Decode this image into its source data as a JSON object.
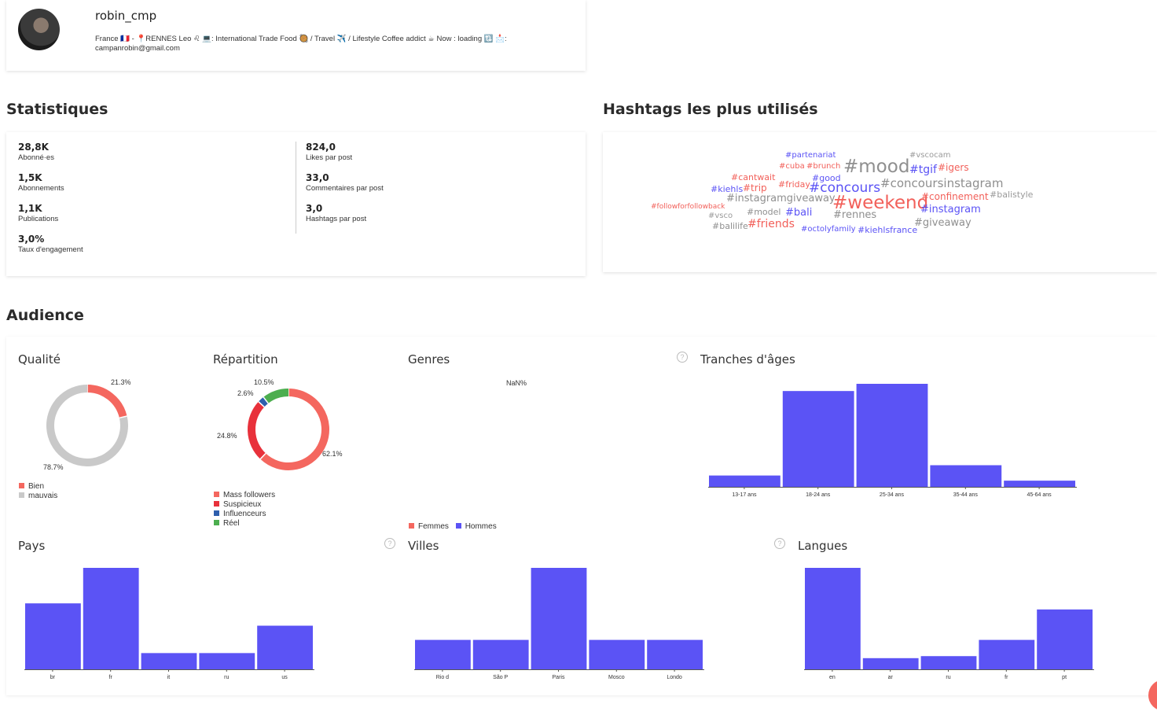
{
  "profile": {
    "username": "robin_cmp",
    "bio": "France 🇫🇷 - 📍RENNES Leo ♌ 💻: International Trade Food 🥘 / Travel ✈️ / Lifestyle Coffee addict ☕ Now : loading 🔃 📩:",
    "email": "campanrobin@gmail.com"
  },
  "stats": {
    "title": "Statistiques",
    "left": [
      {
        "value": "28,8K",
        "label": "Abonné·es"
      },
      {
        "value": "1,5K",
        "label": "Abonnements"
      },
      {
        "value": "1,1K",
        "label": "Publications"
      },
      {
        "value": "3,0%",
        "label": "Taux d'engagement"
      }
    ],
    "right": [
      {
        "value": "824,0",
        "label": "Likes par post"
      },
      {
        "value": "33,0",
        "label": "Commentaires par post"
      },
      {
        "value": "3,0",
        "label": "Hashtags par post"
      }
    ]
  },
  "hashtags": {
    "title": "Hashtags les plus utilisés",
    "tags": [
      {
        "text": "#partenariat",
        "color": "#5b53f5"
      },
      {
        "text": "#vscocam",
        "color": "#9a9a9a"
      },
      {
        "text": "#cuba",
        "color": "#f2605a"
      },
      {
        "text": "#brunch",
        "color": "#f2605a"
      },
      {
        "text": "#mood",
        "color": "#8f8f8f"
      },
      {
        "text": "#tgif",
        "color": "#5b53f5"
      },
      {
        "text": "#igers",
        "color": "#f2605a"
      },
      {
        "text": "#cantwait",
        "color": "#f2605a"
      },
      {
        "text": "#good",
        "color": "#5b53f5"
      },
      {
        "text": "#kiehls",
        "color": "#5b53f5"
      },
      {
        "text": "#trip",
        "color": "#f2605a"
      },
      {
        "text": "#friday",
        "color": "#f2605a"
      },
      {
        "text": "#concours",
        "color": "#5b53f5"
      },
      {
        "text": "#concoursinstagram",
        "color": "#8f8f8f"
      },
      {
        "text": "#instagramgiveaway",
        "color": "#8f8f8f"
      },
      {
        "text": "#weekend",
        "color": "#f2605a"
      },
      {
        "text": "#confinement",
        "color": "#f2605a"
      },
      {
        "text": "#balistyle",
        "color": "#9a9a9a"
      },
      {
        "text": "#followforfollowback",
        "color": "#f2605a"
      },
      {
        "text": "#model",
        "color": "#8f8f8f"
      },
      {
        "text": "#bali",
        "color": "#5b53f5"
      },
      {
        "text": "#instagram",
        "color": "#5b53f5"
      },
      {
        "text": "#vsco",
        "color": "#9a9a9a"
      },
      {
        "text": "#rennes",
        "color": "#8f8f8f"
      },
      {
        "text": "#giveaway",
        "color": "#8f8f8f"
      },
      {
        "text": "#balilife",
        "color": "#8f8f8f"
      },
      {
        "text": "#friends",
        "color": "#f2605a"
      },
      {
        "text": "#octolyfamily",
        "color": "#5b53f5"
      },
      {
        "text": "#kiehlsfrance",
        "color": "#5b53f5"
      }
    ]
  },
  "audience": {
    "title": "Audience",
    "help_glyph": "?",
    "quality": {
      "title": "Qualité",
      "slices": [
        {
          "label": "Bien",
          "value": 21.3,
          "display": "21.3%",
          "color": "#f4675f"
        },
        {
          "label": "mauvais",
          "value": 78.7,
          "display": "78.7%",
          "color": "#c9c9c9"
        }
      ]
    },
    "repartition": {
      "title": "Répartition",
      "slices": [
        {
          "label": "Mass followers",
          "value": 62.1,
          "display": "62.1%",
          "color": "#f4675f"
        },
        {
          "label": "Suspicieux",
          "value": 24.8,
          "display": "24.8%",
          "color": "#e8313b"
        },
        {
          "label": "Influenceurs",
          "value": 2.6,
          "display": "2.6%",
          "color": "#2e5fad"
        },
        {
          "label": "Réel",
          "value": 10.5,
          "display": "10.5%",
          "color": "#4cae4f"
        }
      ]
    },
    "genres": {
      "title": "Genres",
      "value_label": "NaN%",
      "legend": [
        {
          "label": "Femmes",
          "color": "#f4675f"
        },
        {
          "label": "Hommes",
          "color": "#5b53f5"
        }
      ]
    }
  },
  "chart_data": [
    {
      "type": "bar",
      "title": "Tranches d'âges",
      "categories": [
        "13-17 ans",
        "18-24 ans",
        "25-34 ans",
        "35-44 ans",
        "45-64 ans"
      ],
      "values": [
        11,
        93,
        100,
        21,
        6
      ],
      "ylim": [
        0,
        100
      ],
      "color": "#5b53f5"
    },
    {
      "type": "bar",
      "title": "Pays",
      "categories": [
        "br",
        "fr",
        "it",
        "ru",
        "us"
      ],
      "values": [
        65,
        100,
        16,
        16,
        43
      ],
      "ylim": [
        0,
        100
      ],
      "color": "#5b53f5"
    },
    {
      "type": "bar",
      "title": "Villes",
      "categories": [
        "Rio d",
        "São P",
        "Paris",
        "Mosco",
        "Londo"
      ],
      "values": [
        29,
        29,
        100,
        29,
        29
      ],
      "ylim": [
        0,
        100
      ],
      "color": "#5b53f5"
    },
    {
      "type": "bar",
      "title": "Langues",
      "categories": [
        "en",
        "ar",
        "ru",
        "fr",
        "pt"
      ],
      "values": [
        100,
        11,
        13,
        29,
        59
      ],
      "ylim": [
        0,
        100
      ],
      "color": "#5b53f5"
    }
  ]
}
